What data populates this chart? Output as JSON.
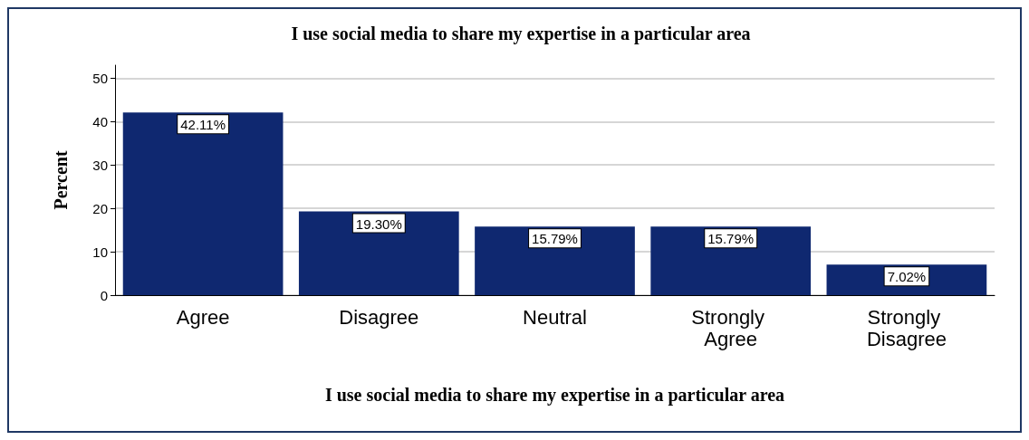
{
  "chart_data": {
    "type": "bar",
    "title": "I use social media to share my expertise in a particular area",
    "xlabel": "I use social media to share my expertise in a particular area",
    "ylabel": "Percent",
    "categories": [
      "Agree",
      "Disagree",
      "Neutral",
      "Strongly Agree",
      "Strongly Disagree"
    ],
    "values": [
      42.11,
      19.3,
      15.79,
      15.79,
      7.02
    ],
    "value_labels": [
      "42.11%",
      "19.30%",
      "15.79%",
      "15.79%",
      "7.02%"
    ],
    "color": "#0f2870",
    "ylim": [
      0,
      53
    ],
    "yticks": [
      0,
      10,
      20,
      30,
      40,
      50
    ],
    "grid": "y"
  }
}
